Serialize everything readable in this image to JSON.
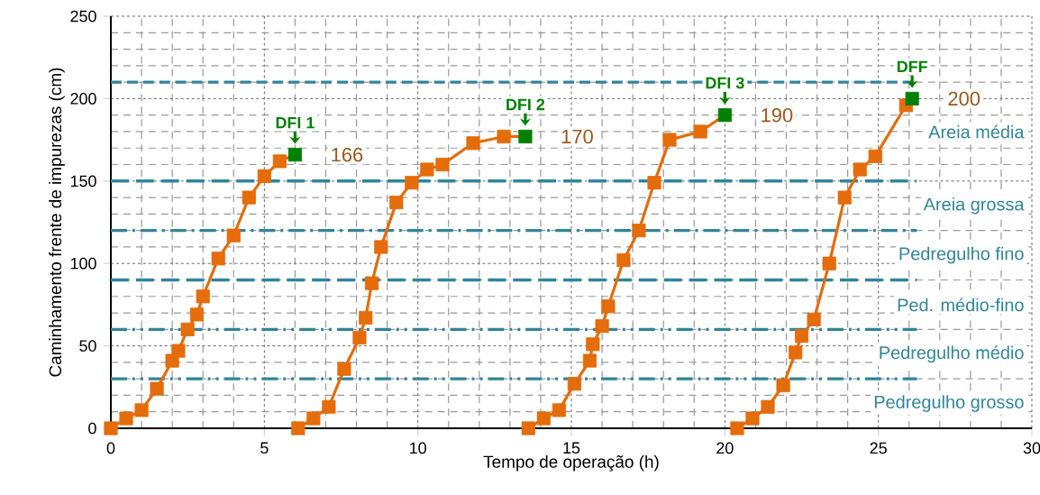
{
  "chart_data": {
    "type": "line",
    "xlabel": "Tempo de operação (h)",
    "ylabel": "Caminhamento frente de impurezas (cm)",
    "xlim": [
      0,
      30
    ],
    "xticks": [
      0,
      5,
      10,
      15,
      20,
      25,
      30
    ],
    "ylim": [
      0,
      250
    ],
    "yticks": [
      0,
      50,
      100,
      150,
      200,
      250
    ],
    "grid": true,
    "marker": "square",
    "line_style": "solid",
    "series": [
      {
        "color": "#e46c0a",
        "x": [
          0,
          0.5,
          1,
          1.5,
          2,
          2.2,
          2.5,
          2.8,
          3,
          3.5,
          4,
          4.5,
          5,
          5.5,
          6
        ],
        "values": [
          0,
          6,
          11,
          24,
          41,
          47,
          60,
          69,
          80,
          103,
          117,
          140,
          153,
          162,
          166
        ],
        "colors": [
          "#e46c0a",
          "#e46c0a",
          "#e46c0a",
          "#e46c0a",
          "#e46c0a",
          "#e46c0a",
          "#e46c0a",
          "#e46c0a",
          "#e46c0a",
          "#e46c0a",
          "#e46c0a",
          "#e46c0a",
          "#e46c0a",
          "#e46c0a",
          "#007f00"
        ],
        "value_labels": [
          null,
          null,
          null,
          null,
          null,
          null,
          null,
          null,
          null,
          null,
          null,
          null,
          null,
          null,
          "166"
        ]
      },
      {
        "color": "#e46c0a",
        "x": [
          6.1,
          6.6,
          7.1,
          7.6,
          8.1,
          8.3,
          8.5,
          8.8,
          9.3,
          9.8,
          10.3,
          10.8,
          11.8,
          12.8,
          13.5
        ],
        "values": [
          0,
          6,
          13,
          36,
          55,
          67,
          88,
          110,
          137,
          149,
          157,
          160,
          173,
          177,
          177
        ],
        "colors": [
          "#e46c0a",
          "#e46c0a",
          "#e46c0a",
          "#e46c0a",
          "#e46c0a",
          "#e46c0a",
          "#e46c0a",
          "#e46c0a",
          "#e46c0a",
          "#e46c0a",
          "#e46c0a",
          "#e46c0a",
          "#e46c0a",
          "#e46c0a",
          "#007f00"
        ]
      },
      {
        "color": "#e46c0a",
        "x": [
          13.6,
          14.1,
          14.6,
          15.1,
          15.6,
          15.7,
          16,
          16.2,
          16.7,
          17.2,
          17.7,
          18.2,
          19.2,
          20
        ],
        "values": [
          0,
          6,
          11,
          27,
          41,
          51,
          62,
          74,
          102,
          120,
          149,
          175,
          180,
          190
        ],
        "colors": [
          "#e46c0a",
          "#e46c0a",
          "#e46c0a",
          "#e46c0a",
          "#e46c0a",
          "#e46c0a",
          "#e46c0a",
          "#e46c0a",
          "#e46c0a",
          "#e46c0a",
          "#e46c0a",
          "#e46c0a",
          "#e46c0a",
          "#007f00"
        ],
        "value_labels": [
          null,
          null,
          null,
          null,
          null,
          null,
          null,
          null,
          null,
          null,
          null,
          null,
          null,
          "190"
        ]
      },
      {
        "color": "#e46c0a",
        "x": [
          20.4,
          20.9,
          21.4,
          21.9,
          22.3,
          22.5,
          22.9,
          23.4,
          23.9,
          24.4,
          24.9,
          25.9,
          26.1
        ],
        "values": [
          0,
          6,
          13,
          26,
          46,
          56,
          66,
          100,
          140,
          157,
          165,
          196,
          200
        ],
        "colors": [
          "#e46c0a",
          "#e46c0a",
          "#e46c0a",
          "#e46c0a",
          "#e46c0a",
          "#e46c0a",
          "#e46c0a",
          "#e46c0a",
          "#e46c0a",
          "#e46c0a",
          "#e46c0a",
          "#e46c0a",
          "#007f00"
        ],
        "value_labels": [
          null,
          null,
          null,
          null,
          null,
          null,
          null,
          null,
          null,
          null,
          null,
          null,
          "200"
        ]
      }
    ],
    "ref_lines": [
      {
        "axis": "y",
        "value": 30,
        "label": "Pedregulho grosso",
        "color": "#31849b",
        "line_style": "dashdotdot"
      },
      {
        "axis": "y",
        "value": 60,
        "label": "Pedregulho médio",
        "color": "#31849b",
        "line_style": "dashdotdot"
      },
      {
        "axis": "y",
        "value": 90,
        "label": "Ped. médio-fino",
        "color": "#31849b",
        "line_style": "longdash"
      },
      {
        "axis": "y",
        "value": 120,
        "label": "Pedregulho fino",
        "color": "#31849b",
        "line_style": "dashdot"
      },
      {
        "axis": "y",
        "value": 150,
        "label": "Areia grossa",
        "color": "#31849b",
        "line_style": "longdash"
      },
      {
        "axis": "y",
        "value": 210,
        "label": "Areia média",
        "color": "#31849b",
        "line_style": "dashed"
      }
    ],
    "annotations": [
      {
        "text": "DFI 1",
        "x": 6,
        "y": 166
      },
      {
        "text": "DFI 2",
        "x": 13.5,
        "y": 177
      },
      {
        "text": "DFI 3",
        "x": 20,
        "y": 190
      },
      {
        "text": "DFF",
        "x": 26.1,
        "y": 200
      },
      "170"
    ]
  }
}
